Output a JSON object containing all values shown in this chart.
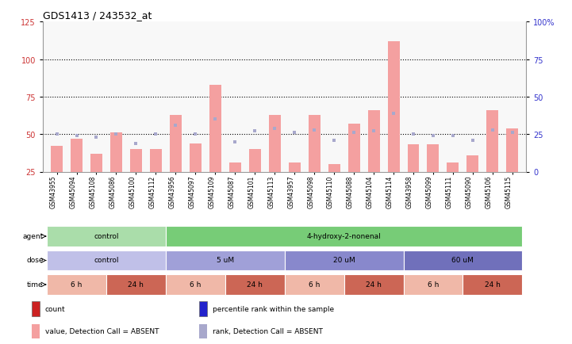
{
  "title": "GDS1413 / 243532_at",
  "samples": [
    "GSM43955",
    "GSM45094",
    "GSM45108",
    "GSM45086",
    "GSM45100",
    "GSM45112",
    "GSM43956",
    "GSM45097",
    "GSM45109",
    "GSM45087",
    "GSM45101",
    "GSM45113",
    "GSM43957",
    "GSM45098",
    "GSM45110",
    "GSM45088",
    "GSM45104",
    "GSM45114",
    "GSM43958",
    "GSM45099",
    "GSM45111",
    "GSM45090",
    "GSM45106",
    "GSM45115"
  ],
  "bar_values": [
    42,
    47,
    37,
    51,
    40,
    40,
    63,
    44,
    83,
    31,
    40,
    63,
    31,
    63,
    30,
    57,
    66,
    112,
    43,
    43,
    31,
    36,
    66,
    54
  ],
  "rank_values": [
    50,
    49,
    48,
    50,
    44,
    50,
    56,
    50,
    60,
    45,
    52,
    54,
    51,
    53,
    46,
    51,
    52,
    64,
    50,
    49,
    49,
    46,
    53,
    51
  ],
  "bar_color": "#f4a0a0",
  "rank_color": "#a8a8cc",
  "dotted_line_values": [
    50,
    75,
    100
  ],
  "ylim_left": [
    25,
    125
  ],
  "ylim_right": [
    0,
    100
  ],
  "left_ticks": [
    25,
    50,
    75,
    100,
    125
  ],
  "right_ticks": [
    0,
    25,
    50,
    75,
    100
  ],
  "right_tick_labels": [
    "0",
    "25",
    "50",
    "75",
    "100%"
  ],
  "agent_groups": [
    {
      "label": "control",
      "start": 0,
      "end": 6,
      "color": "#aaddaa"
    },
    {
      "label": "4-hydroxy-2-nonenal",
      "start": 6,
      "end": 24,
      "color": "#77cc77"
    }
  ],
  "dose_groups": [
    {
      "label": "control",
      "start": 0,
      "end": 6,
      "color": "#c0c0e8"
    },
    {
      "label": "5 uM",
      "start": 6,
      "end": 12,
      "color": "#a0a0d8"
    },
    {
      "label": "20 uM",
      "start": 12,
      "end": 18,
      "color": "#8888cc"
    },
    {
      "label": "60 uM",
      "start": 18,
      "end": 24,
      "color": "#7070bb"
    }
  ],
  "time_groups": [
    {
      "label": "6 h",
      "start": 0,
      "end": 3,
      "color": "#f0b8a8"
    },
    {
      "label": "24 h",
      "start": 3,
      "end": 6,
      "color": "#cc6655"
    },
    {
      "label": "6 h",
      "start": 6,
      "end": 9,
      "color": "#f0b8a8"
    },
    {
      "label": "24 h",
      "start": 9,
      "end": 12,
      "color": "#cc6655"
    },
    {
      "label": "6 h",
      "start": 12,
      "end": 15,
      "color": "#f0b8a8"
    },
    {
      "label": "24 h",
      "start": 15,
      "end": 18,
      "color": "#cc6655"
    },
    {
      "label": "6 h",
      "start": 18,
      "end": 21,
      "color": "#f0b8a8"
    },
    {
      "label": "24 h",
      "start": 21,
      "end": 24,
      "color": "#cc6655"
    }
  ],
  "legend_items": [
    {
      "color": "#cc2222",
      "label": "count",
      "marker": "square"
    },
    {
      "color": "#2222cc",
      "label": "percentile rank within the sample",
      "marker": "square"
    },
    {
      "color": "#f4a0a0",
      "label": "value, Detection Call = ABSENT",
      "marker": "square"
    },
    {
      "color": "#a8a8cc",
      "label": "rank, Detection Call = ABSENT",
      "marker": "square"
    }
  ]
}
